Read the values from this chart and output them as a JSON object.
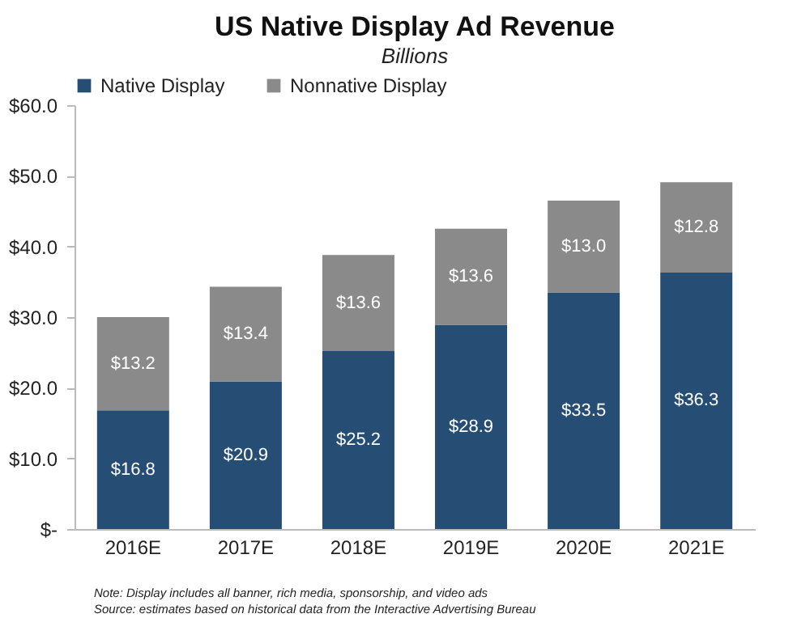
{
  "chart_data": {
    "type": "bar",
    "title": "US Native Display Ad Revenue",
    "subtitle": "Billions",
    "categories": [
      "2016E",
      "2017E",
      "2018E",
      "2019E",
      "2020E",
      "2021E"
    ],
    "stacked": true,
    "series": [
      {
        "name": "Native Display",
        "color": "#264e74",
        "values": [
          16.8,
          20.9,
          25.2,
          28.9,
          33.5,
          36.3
        ],
        "value_labels": [
          "$16.8",
          "$20.9",
          "$25.2",
          "$28.9",
          "$33.5",
          "$36.3"
        ]
      },
      {
        "name": "Nonnative Display",
        "color": "#8a8a8a",
        "values": [
          13.2,
          13.4,
          13.6,
          13.6,
          13.0,
          12.8
        ],
        "value_labels": [
          "$13.2",
          "$13.4",
          "$13.6",
          "$13.6",
          "$13.0",
          "$12.8"
        ]
      }
    ],
    "ylim": [
      0,
      60
    ],
    "yticks": [
      {
        "value": 0,
        "label": "$-"
      },
      {
        "value": 10,
        "label": "$10.0"
      },
      {
        "value": 20,
        "label": "$20.0"
      },
      {
        "value": 30,
        "label": "$30.0"
      },
      {
        "value": 40,
        "label": "$40.0"
      },
      {
        "value": 50,
        "label": "$50.0"
      },
      {
        "value": 60,
        "label": "$60.0"
      }
    ],
    "grid": false,
    "legend": "top",
    "annotations": [
      "Note: Display includes all banner, rich media, sponsorship, and video ads",
      "Source: estimates based on historical data from the Interactive Advertising Bureau"
    ]
  }
}
